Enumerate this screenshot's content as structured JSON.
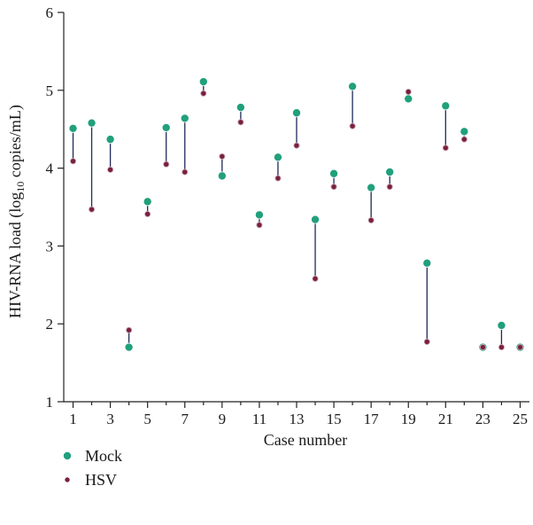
{
  "chart_data": {
    "type": "scatter",
    "title": "",
    "xlabel": "Case number",
    "ylabel": "HIV-RNA load (log₁₀ copies/mL)",
    "xlim": [
      0.5,
      25.5
    ],
    "ylim": [
      1,
      6
    ],
    "xticks": [
      1,
      3,
      5,
      7,
      9,
      11,
      13,
      15,
      17,
      19,
      21,
      23,
      25
    ],
    "yticks": [
      1,
      2,
      3,
      4,
      5,
      6
    ],
    "grid": false,
    "legend_position": "bottom-left",
    "x": [
      1,
      2,
      3,
      4,
      5,
      6,
      7,
      8,
      9,
      10,
      11,
      12,
      13,
      14,
      15,
      16,
      17,
      18,
      19,
      20,
      21,
      22,
      23,
      24,
      25
    ],
    "series": [
      {
        "name": "Mock",
        "color": "#21a07c",
        "values": [
          4.51,
          4.58,
          4.37,
          1.7,
          3.57,
          4.52,
          4.64,
          5.11,
          3.9,
          4.78,
          3.4,
          4.14,
          4.71,
          3.34,
          3.93,
          5.05,
          3.75,
          3.95,
          4.89,
          2.78,
          4.8,
          4.47,
          1.7,
          1.98,
          1.7
        ]
      },
      {
        "name": "HSV",
        "color": "#7a1f3d",
        "values": [
          4.09,
          3.47,
          3.98,
          1.92,
          3.41,
          4.05,
          3.95,
          4.96,
          4.15,
          4.59,
          3.27,
          3.87,
          4.29,
          2.58,
          3.76,
          4.54,
          3.33,
          3.76,
          4.98,
          1.77,
          4.26,
          4.37,
          1.7,
          1.7,
          1.7
        ]
      }
    ],
    "connector_color": "#1f2a5a"
  }
}
